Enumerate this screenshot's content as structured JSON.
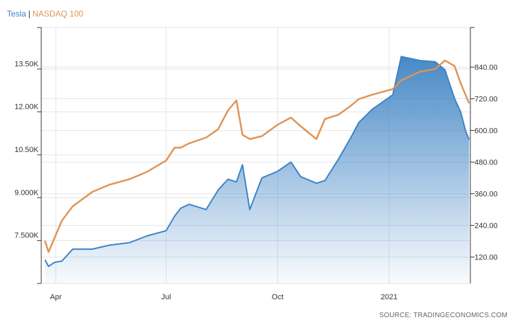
{
  "legend": {
    "tesla": "Tesla",
    "separator": "|",
    "nasdaq": "NASDAQ 100"
  },
  "source": "SOURCE: TRADINGECONOMICS.COM",
  "colors": {
    "tesla": "#3d83c4",
    "nasdaq": "#df9455",
    "grid": "#e4e4e4",
    "axis": "#333333"
  },
  "chart_data": {
    "type": "line",
    "x": [
      "2020-03-23",
      "2020-03-26",
      "2020-03-31",
      "2020-04-06",
      "2020-04-15",
      "2020-05-01",
      "2020-05-15",
      "2020-06-01",
      "2020-06-15",
      "2020-07-01",
      "2020-07-08",
      "2020-07-13",
      "2020-07-20",
      "2020-08-03",
      "2020-08-13",
      "2020-08-21",
      "2020-08-28",
      "2020-09-02",
      "2020-09-08",
      "2020-09-18",
      "2020-10-01",
      "2020-10-12",
      "2020-10-20",
      "2020-11-02",
      "2020-11-09",
      "2020-11-20",
      "2020-11-30",
      "2020-12-07",
      "2020-12-18",
      "2021-01-04",
      "2021-01-11",
      "2021-01-26",
      "2021-02-08",
      "2021-02-16",
      "2021-02-24",
      "2021-03-01",
      "2021-03-05",
      "2021-03-08"
    ],
    "series": [
      {
        "name": "Tesla",
        "axis": "right",
        "values": [
          110,
          85,
          100,
          105,
          150,
          150,
          165,
          175,
          200,
          220,
          275,
          305,
          320,
          300,
          375,
          415,
          405,
          470,
          300,
          420,
          445,
          480,
          425,
          400,
          410,
          490,
          570,
          630,
          680,
          735,
          880,
          865,
          860,
          830,
          720,
          670,
          600,
          565
        ]
      },
      {
        "name": "NASDAQ 100",
        "axis": "left",
        "values": [
          7500,
          7100,
          7600,
          8200,
          8700,
          9200,
          9450,
          9650,
          9900,
          10300,
          10750,
          10750,
          10900,
          11100,
          11400,
          12050,
          12400,
          11200,
          11050,
          11150,
          11550,
          11800,
          11500,
          11050,
          11750,
          11900,
          12200,
          12450,
          12600,
          12800,
          13100,
          13400,
          13500,
          13800,
          13600,
          13000,
          12600,
          12300
        ]
      }
    ],
    "left_axis": {
      "ticks": [
        "7.500K",
        "9.000K",
        "10.50K",
        "12.00K",
        "13.50K"
      ],
      "ylim": [
        6000,
        14950
      ]
    },
    "right_axis": {
      "ticks": [
        "120.00",
        "240.00",
        "360.00",
        "480.00",
        "600.00",
        "720.00",
        "840.00"
      ],
      "ylim": [
        20,
        990
      ]
    },
    "x_ticks": [
      {
        "label": "Apr",
        "date": "2020-04-01"
      },
      {
        "label": "Jul",
        "date": "2020-07-01"
      },
      {
        "label": "Oct",
        "date": "2020-10-01"
      },
      {
        "label": "2021",
        "date": "2021-01-01"
      }
    ],
    "xlim": [
      "2020-03-20",
      "2021-03-09"
    ],
    "grid": true
  }
}
